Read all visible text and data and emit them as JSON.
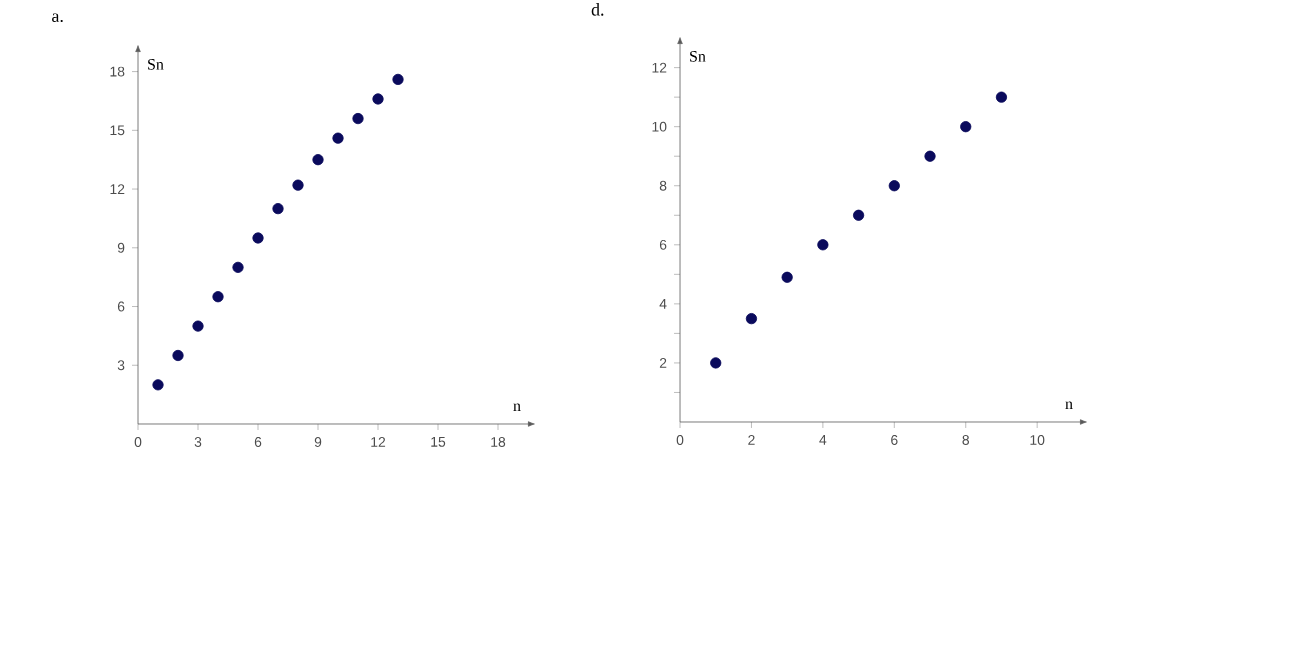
{
  "chart_data": [
    {
      "type": "scatter",
      "title": "a.",
      "xlabel": "n",
      "ylabel": "Sn",
      "marker": "circle",
      "color": "#0a0a5c",
      "x": [
        1,
        2,
        3,
        4,
        5,
        6,
        7,
        8,
        9,
        10,
        11,
        12,
        13
      ],
      "values": [
        2,
        3.5,
        5,
        6.5,
        8,
        9.5,
        11,
        12.2,
        13.5,
        14.6,
        15.6,
        16.6,
        17.6
      ],
      "xlim": [
        0,
        19.5
      ],
      "ylim": [
        0,
        19
      ],
      "xticks": [
        0,
        3,
        6,
        9,
        12,
        15,
        18
      ],
      "yticks": [
        3,
        6,
        9,
        12,
        15,
        18
      ]
    },
    {
      "type": "scatter",
      "title": "d.",
      "xlabel": "n",
      "ylabel": "Sn",
      "marker": "circle",
      "color": "#0a0a5c",
      "x": [
        1,
        2,
        3,
        4,
        5,
        6,
        7,
        8,
        9
      ],
      "values": [
        2,
        3.5,
        4.9,
        6,
        7,
        8,
        9,
        10,
        11
      ],
      "xlim": [
        0,
        11.2
      ],
      "ylim": [
        0,
        12.8
      ],
      "xticks": [
        0,
        2,
        4,
        6,
        8,
        10
      ],
      "yticks": [
        {
          "value": 1,
          "label": null
        },
        2,
        {
          "value": 3,
          "label": null
        },
        4,
        {
          "value": 5,
          "label": null
        },
        6,
        {
          "value": 7,
          "label": null
        },
        8,
        {
          "value": 9,
          "label": null
        },
        10,
        {
          "value": 11,
          "label": null
        },
        12
      ]
    }
  ]
}
